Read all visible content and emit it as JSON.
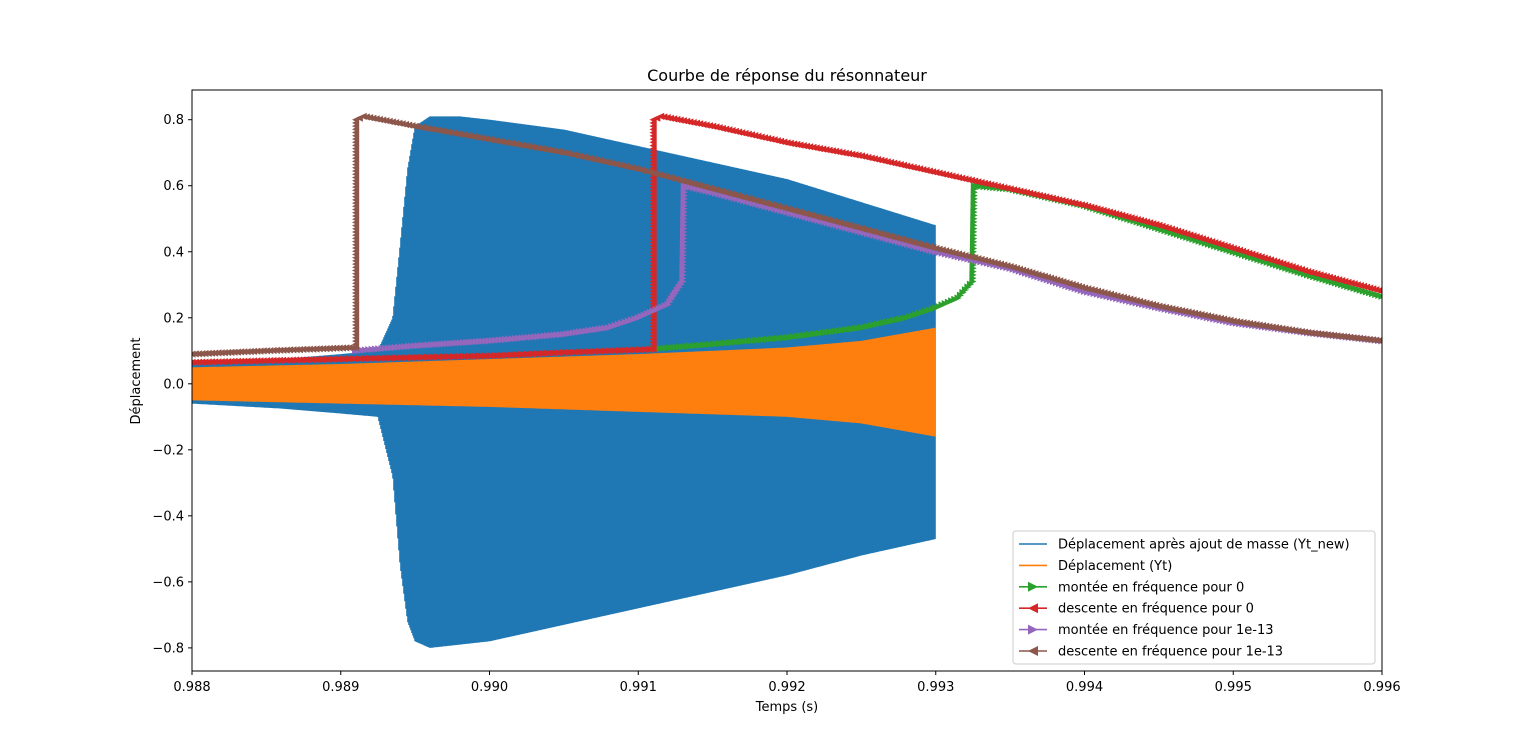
{
  "chart_data": {
    "type": "line",
    "title": "Courbe de réponse du résonnateur",
    "xlabel": "Temps (s)",
    "ylabel": "Déplacement",
    "xlim": [
      0.988,
      0.996
    ],
    "ylim": [
      -0.87,
      0.89
    ],
    "xticks": [
      {
        "value": 0.988,
        "label": "0.988"
      },
      {
        "value": 0.989,
        "label": "0.989"
      },
      {
        "value": 0.99,
        "label": "0.990"
      },
      {
        "value": 0.991,
        "label": "0.991"
      },
      {
        "value": 0.992,
        "label": "0.992"
      },
      {
        "value": 0.993,
        "label": "0.993"
      },
      {
        "value": 0.994,
        "label": "0.994"
      },
      {
        "value": 0.995,
        "label": "0.995"
      },
      {
        "value": 0.996,
        "label": "0.996"
      }
    ],
    "yticks": [
      {
        "value": -0.8,
        "label": "−0.8"
      },
      {
        "value": -0.6,
        "label": "−0.6"
      },
      {
        "value": -0.4,
        "label": "−0.4"
      },
      {
        "value": -0.2,
        "label": "−0.2"
      },
      {
        "value": 0.0,
        "label": "0.0"
      },
      {
        "value": 0.2,
        "label": "0.2"
      },
      {
        "value": 0.4,
        "label": "0.4"
      },
      {
        "value": 0.6,
        "label": "0.6"
      },
      {
        "value": 0.8,
        "label": "0.8"
      }
    ],
    "grid": false,
    "legend_position": "lower-right",
    "series": [
      {
        "name": "Déplacement après ajout de masse (Yt_new)",
        "color": "#1f77b4",
        "marker": "none",
        "style": "oscillation-envelope",
        "upper": [
          [
            0.988,
            0.06
          ],
          [
            0.9886,
            0.075
          ],
          [
            0.989,
            0.09
          ],
          [
            0.98925,
            0.1
          ],
          [
            0.98935,
            0.2
          ],
          [
            0.9894,
            0.42
          ],
          [
            0.98945,
            0.65
          ],
          [
            0.9895,
            0.78
          ],
          [
            0.9896,
            0.81
          ],
          [
            0.9898,
            0.81
          ],
          [
            0.99,
            0.8
          ],
          [
            0.9905,
            0.77
          ],
          [
            0.991,
            0.72
          ],
          [
            0.9915,
            0.67
          ],
          [
            0.992,
            0.62
          ],
          [
            0.9925,
            0.55
          ],
          [
            0.993,
            0.48
          ]
        ],
        "lower": [
          [
            0.988,
            -0.06
          ],
          [
            0.9886,
            -0.075
          ],
          [
            0.989,
            -0.09
          ],
          [
            0.98925,
            -0.1
          ],
          [
            0.98935,
            -0.28
          ],
          [
            0.9894,
            -0.55
          ],
          [
            0.98945,
            -0.72
          ],
          [
            0.9895,
            -0.78
          ],
          [
            0.9896,
            -0.8
          ],
          [
            0.9898,
            -0.79
          ],
          [
            0.99,
            -0.78
          ],
          [
            0.9905,
            -0.73
          ],
          [
            0.991,
            -0.68
          ],
          [
            0.9915,
            -0.63
          ],
          [
            0.992,
            -0.58
          ],
          [
            0.9925,
            -0.52
          ],
          [
            0.993,
            -0.47
          ]
        ]
      },
      {
        "name": "Déplacement (Yt)",
        "color": "#ff7f0e",
        "marker": "none",
        "style": "oscillation-envelope",
        "upper": [
          [
            0.988,
            0.05
          ],
          [
            0.989,
            0.06
          ],
          [
            0.99,
            0.075
          ],
          [
            0.991,
            0.09
          ],
          [
            0.992,
            0.11
          ],
          [
            0.9925,
            0.13
          ],
          [
            0.993,
            0.17
          ]
        ],
        "lower": [
          [
            0.988,
            -0.05
          ],
          [
            0.989,
            -0.06
          ],
          [
            0.99,
            -0.07
          ],
          [
            0.991,
            -0.085
          ],
          [
            0.992,
            -0.1
          ],
          [
            0.9925,
            -0.12
          ],
          [
            0.993,
            -0.16
          ]
        ]
      },
      {
        "name": "montée en fréquence pour 0",
        "color": "#2ca02c",
        "marker": "triangle-right",
        "points": [
          [
            0.9911,
            0.105
          ],
          [
            0.9915,
            0.12
          ],
          [
            0.992,
            0.14
          ],
          [
            0.9925,
            0.17
          ],
          [
            0.9928,
            0.2
          ],
          [
            0.993,
            0.23
          ],
          [
            0.99315,
            0.26
          ],
          [
            0.99325,
            0.31
          ],
          [
            0.99326,
            0.6
          ],
          [
            0.9935,
            0.59
          ],
          [
            0.994,
            0.54
          ],
          [
            0.9945,
            0.47
          ],
          [
            0.995,
            0.4
          ],
          [
            0.9955,
            0.33
          ],
          [
            0.996,
            0.265
          ]
        ]
      },
      {
        "name": "descente en fréquence pour 0",
        "color": "#d62728",
        "marker": "triangle-left",
        "points": [
          [
            0.996,
            0.28
          ],
          [
            0.9955,
            0.34
          ],
          [
            0.995,
            0.41
          ],
          [
            0.9945,
            0.48
          ],
          [
            0.994,
            0.54
          ],
          [
            0.9935,
            0.59
          ],
          [
            0.993,
            0.64
          ],
          [
            0.9925,
            0.69
          ],
          [
            0.992,
            0.73
          ],
          [
            0.9915,
            0.78
          ],
          [
            0.99115,
            0.81
          ],
          [
            0.9911,
            0.8
          ],
          [
            0.9911,
            0.105
          ],
          [
            0.9905,
            0.095
          ],
          [
            0.99,
            0.085
          ],
          [
            0.9895,
            0.08
          ],
          [
            0.989,
            0.075
          ],
          [
            0.9885,
            0.07
          ],
          [
            0.988,
            0.065
          ]
        ]
      },
      {
        "name": "montée en fréquence pour 1e-13",
        "color": "#9467bd",
        "marker": "triangle-right",
        "points": [
          [
            0.9891,
            0.1
          ],
          [
            0.9895,
            0.115
          ],
          [
            0.99,
            0.13
          ],
          [
            0.9905,
            0.15
          ],
          [
            0.9908,
            0.17
          ],
          [
            0.991,
            0.2
          ],
          [
            0.9912,
            0.24
          ],
          [
            0.9913,
            0.31
          ],
          [
            0.99131,
            0.6
          ],
          [
            0.9915,
            0.58
          ],
          [
            0.992,
            0.52
          ],
          [
            0.9925,
            0.46
          ],
          [
            0.993,
            0.4
          ],
          [
            0.9935,
            0.35
          ],
          [
            0.994,
            0.28
          ],
          [
            0.9945,
            0.23
          ],
          [
            0.995,
            0.185
          ],
          [
            0.9955,
            0.155
          ],
          [
            0.996,
            0.13
          ]
        ]
      },
      {
        "name": "descente en fréquence pour 1e-13",
        "color": "#8c564b",
        "marker": "triangle-left",
        "points": [
          [
            0.996,
            0.13
          ],
          [
            0.9955,
            0.155
          ],
          [
            0.995,
            0.19
          ],
          [
            0.9945,
            0.235
          ],
          [
            0.994,
            0.29
          ],
          [
            0.9935,
            0.355
          ],
          [
            0.993,
            0.41
          ],
          [
            0.9925,
            0.47
          ],
          [
            0.992,
            0.53
          ],
          [
            0.9915,
            0.59
          ],
          [
            0.991,
            0.65
          ],
          [
            0.9905,
            0.7
          ],
          [
            0.99,
            0.74
          ],
          [
            0.9895,
            0.78
          ],
          [
            0.98915,
            0.81
          ],
          [
            0.9891,
            0.8
          ],
          [
            0.9891,
            0.11
          ],
          [
            0.9885,
            0.1
          ],
          [
            0.988,
            0.09
          ]
        ]
      }
    ]
  }
}
